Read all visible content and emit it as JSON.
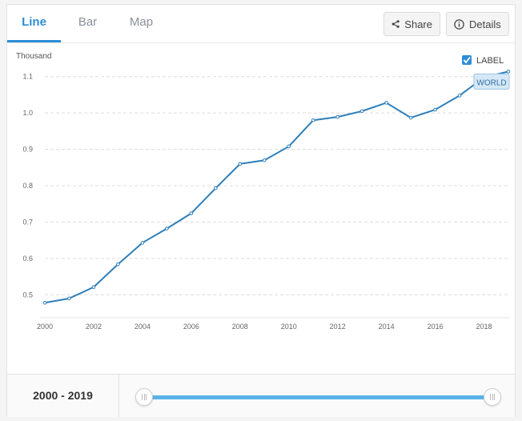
{
  "tabs": [
    {
      "label": "Line",
      "active": true
    },
    {
      "label": "Bar",
      "active": false
    },
    {
      "label": "Map",
      "active": false
    }
  ],
  "toolbar": {
    "share_label": "Share",
    "share_icon": "share-icon",
    "details_label": "Details",
    "details_icon": "info-icon"
  },
  "label_toggle": {
    "label": "LABEL",
    "checked": true
  },
  "chart_data": {
    "type": "line",
    "unit_label": "Thousand",
    "x": [
      2000,
      2001,
      2002,
      2003,
      2004,
      2005,
      2006,
      2007,
      2008,
      2009,
      2010,
      2011,
      2012,
      2013,
      2014,
      2015,
      2016,
      2017,
      2018,
      2019
    ],
    "series": [
      {
        "name": "WORLD",
        "color": "#2e7fba",
        "values": [
          0.478,
          0.49,
          0.521,
          0.584,
          0.643,
          0.682,
          0.724,
          0.793,
          0.86,
          0.87,
          0.908,
          0.98,
          0.989,
          1.005,
          1.028,
          0.987,
          1.009,
          1.048,
          1.098,
          1.114
        ]
      }
    ],
    "yticks": [
      "0.5",
      "0.6",
      "0.7",
      "0.8",
      "0.9",
      "1.0",
      "1.1"
    ],
    "ytick_values": [
      0.5,
      0.6,
      0.7,
      0.8,
      0.9,
      1.0,
      1.1
    ],
    "xticks": [
      "2000",
      "2002",
      "2004",
      "2006",
      "2008",
      "2010",
      "2012",
      "2014",
      "2016",
      "2018"
    ],
    "xtick_values": [
      2000,
      2002,
      2004,
      2006,
      2008,
      2010,
      2012,
      2014,
      2016,
      2018
    ],
    "xlim": [
      2000,
      2019
    ],
    "ylim": [
      0.45,
      1.15
    ],
    "grid": true,
    "line_label": "WORLD"
  },
  "range": {
    "label": "2000 - 2019",
    "start": 2000,
    "end": 2019
  },
  "colors": {
    "accent": "#2d8ed7",
    "line": "#2e7fba",
    "slider": "#5bb2e8"
  }
}
